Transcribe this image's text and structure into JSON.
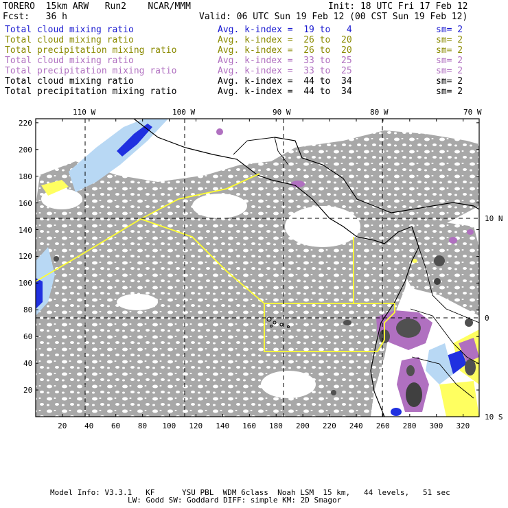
{
  "header": {
    "model": "TORERO  15km ARW   Run2    NCAR/MMM",
    "init": "Init: 18 UTC Fri 17 Feb 12",
    "fcst": "Fcst:   36 h",
    "valid": "Valid: 06 UTC Sun 19 Feb 12 (00 CST Sun 19 Feb 12)"
  },
  "legend": [
    {
      "field": "Total cloud mixing ratio",
      "avg": "Avg. k-index =  19 to   4",
      "sm": "sm= 2",
      "color": "#1a1ad0"
    },
    {
      "field": "Total cloud mixing ratio",
      "avg": "Avg. k-index =  26 to  20",
      "sm": "sm= 2",
      "color": "#8a8a00"
    },
    {
      "field": "Total precipitation mixing ratio",
      "avg": "Avg. k-index =  26 to  20",
      "sm": "sm= 2",
      "color": "#8a8a00"
    },
    {
      "field": "Total cloud mixing ratio",
      "avg": "Avg. k-index =  33 to  25",
      "sm": "sm= 2",
      "color": "#b070c0"
    },
    {
      "field": "Total precipitation mixing ratio",
      "avg": "Avg. k-index =  33 to  25",
      "sm": "sm= 2",
      "color": "#b070c0"
    },
    {
      "field": "Total cloud mixing ratio",
      "avg": "Avg. k-index =  44 to  34",
      "sm": "sm= 2",
      "color": "#000000"
    },
    {
      "field": "Total precipitation mixing ratio",
      "avg": "Avg. k-index =  44 to  34",
      "sm": "sm= 2",
      "color": "#000000"
    }
  ],
  "map": {
    "lon_labels": [
      "110 W",
      "100 W",
      "90 W",
      "80 W",
      "70 W"
    ],
    "lat_labels": [
      "10 N",
      "0",
      "10 S"
    ],
    "x_ticks": [
      "20",
      "40",
      "60",
      "80",
      "100",
      "120",
      "140",
      "160",
      "180",
      "200",
      "220",
      "240",
      "260",
      "280",
      "300",
      "320"
    ],
    "y_ticks": [
      "220",
      "200",
      "180",
      "160",
      "140",
      "120",
      "100",
      "80",
      "60",
      "40",
      "20"
    ],
    "colors": {
      "cloud_gray": "#a8a8a8",
      "dark_gray": "#505050",
      "light_blue": "#b8d8f4",
      "blue": "#2030e0",
      "yellow": "#ffff60",
      "purple": "#b070c0",
      "boundary": "#ffff30"
    }
  },
  "footer": {
    "line1": "Model Info: V3.3.1   KF      YSU PBL  WDM 6class  Noah LSM  15 km,   44 levels,   51 sec",
    "line2": "LW: Godd SW: Goddard DIFF: simple KM: 2D Smagor"
  }
}
